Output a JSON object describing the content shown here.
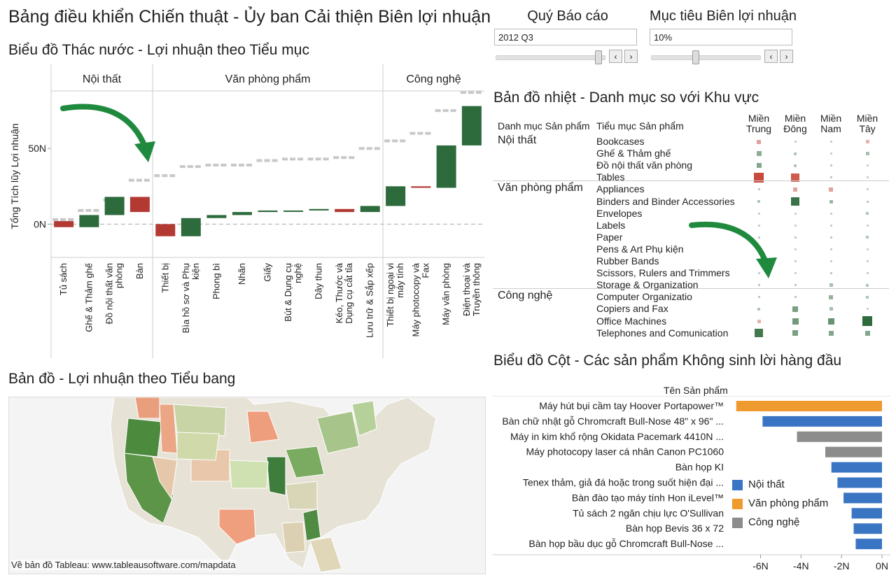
{
  "dashboard": {
    "title": "Bảng điều khiển Chiến thuật - Ủy ban Cải thiện Biên lợi nhuận"
  },
  "controls": {
    "quarter": {
      "label": "Quý Báo cáo",
      "value": "2012 Q3",
      "slider_fraction": 0.97
    },
    "margin_target": {
      "label": "Mục tiêu Biên lợi nhuận",
      "value": "10%",
      "slider_fraction": 0.42
    },
    "prev_symbol": "‹",
    "next_symbol": "›"
  },
  "waterfall": {
    "title": "Biểu đồ Thác nước - Lợi nhuận theo Tiểu mục",
    "y_axis_label": "Tổng Tích lũy Lợi nhuận",
    "y_ticks": [
      "50N",
      "0N"
    ],
    "groups": [
      "Nội thất",
      "Văn phòng phẩm",
      "Công nghệ"
    ]
  },
  "chart_data": [
    {
      "type": "bar",
      "subtype": "waterfall",
      "title": "Biểu đồ Thác nước - Lợi nhuận theo Tiểu mục",
      "ylabel": "Tổng Tích lũy Lợi nhuận",
      "ylim": [
        -22,
        88
      ],
      "groups": [
        {
          "name": "Nội thất",
          "categories": [
            "Tủ sách",
            "Ghế & Thảm ghế",
            "Đồ nội thất văn phòng",
            "Bàn"
          ]
        },
        {
          "name": "Văn phòng phẩm",
          "categories": [
            "Thiết bị",
            "Bìa hồ sơ và Phụ kiện",
            "Phong bì",
            "Nhãn",
            "Giấy",
            "Bút & Dụng cụ nghệ",
            "Dây thun",
            "Kéo, Thước và Dụng cụ cắt tỉa",
            "Lưu trữ & Sắp xếp"
          ]
        },
        {
          "name": "Công nghệ",
          "categories": [
            "Thiết bị ngoại vi máy tính",
            "Máy photocopy và Fax",
            "Máy văn phòng",
            "Điện thoại và Truyền thông"
          ]
        }
      ],
      "categories": [
        "Tủ sách",
        "Ghế & Thảm ghế",
        "Đồ nội thất văn phòng",
        "Bàn",
        "Thiết bị",
        "Bìa hồ sơ và Phụ kiện",
        "Phong bì",
        "Nhãn",
        "Giấy",
        "Bút & Dụng cụ nghệ",
        "Dây thun",
        "Kéo, Thước và Dụng cụ cắt tỉa",
        "Lưu trữ & Sắp xếp",
        "Thiết bị ngoại vi máy tính",
        "Máy photocopy và Fax",
        "Máy văn phòng",
        "Điện thoại và Truyền thông"
      ],
      "start": [
        2,
        -2,
        6,
        18,
        0,
        -8,
        4,
        6,
        8,
        9,
        9,
        10,
        8,
        12,
        25,
        24,
        52
      ],
      "end": [
        -2,
        6,
        18,
        8,
        -8,
        4,
        6,
        8,
        9,
        9,
        10,
        8,
        12,
        25,
        24,
        52,
        78
      ],
      "target_line": [
        3,
        9,
        16,
        29,
        32,
        38,
        39,
        39,
        42,
        43,
        43,
        44,
        50,
        55,
        60,
        75,
        87
      ],
      "colors": {
        "positive": "#2d6a3c",
        "negative": "#b33a33",
        "target": "#c8c8c8"
      }
    },
    {
      "type": "heatmap",
      "title": "Bản đồ nhiệt - Danh mục so với Khu vực",
      "columns": [
        "Miền Trung",
        "Miền Đông",
        "Miền Nam",
        "Miền Tây"
      ],
      "row_header": [
        "Danh mục Sản phẩm",
        "Tiểu mục Sản phẩm"
      ],
      "groups": [
        {
          "category": "Nội thất",
          "rows": [
            {
              "name": "Bookcases",
              "values": [
                -0.3,
                0.05,
                0.05,
                -0.2
              ]
            },
            {
              "name": "Ghế & Thảm ghế",
              "values": [
                0.35,
                0.15,
                0.05,
                0.2
              ]
            },
            {
              "name": "Đồ nội thất văn phòng",
              "values": [
                0.4,
                0.15,
                0.1,
                0.05
              ]
            },
            {
              "name": "Tables",
              "values": [
                -0.9,
                -0.75,
                0.1,
                0.05
              ]
            }
          ]
        },
        {
          "category": "Văn phòng phẩm",
          "rows": [
            {
              "name": "Appliances",
              "values": [
                0.1,
                -0.3,
                -0.3,
                0.05
              ]
            },
            {
              "name": "Binders and Binder Accessories",
              "values": [
                0.15,
                0.8,
                0.25,
                0.1
              ]
            },
            {
              "name": "Envelopes",
              "values": [
                0.05,
                0.05,
                0.05,
                0.15
              ]
            },
            {
              "name": "Labels",
              "values": [
                0.05,
                0.05,
                0.05,
                0.05
              ]
            },
            {
              "name": "Paper",
              "values": [
                0.1,
                0.1,
                0.1,
                0.15
              ]
            },
            {
              "name": "Pens & Art Phụ kiện",
              "values": [
                0.05,
                0.05,
                0.05,
                0.05
              ]
            },
            {
              "name": "Rubber Bands",
              "values": [
                0.05,
                0.05,
                0.05,
                0.05
              ]
            },
            {
              "name": "Scissors, Rulers and Trimmers",
              "values": [
                0.05,
                0.05,
                0.1,
                0.05
              ]
            },
            {
              "name": "Storage & Organization",
              "values": [
                0.1,
                0.1,
                0.2,
                0.15
              ]
            }
          ]
        },
        {
          "category": "Công nghệ",
          "rows": [
            {
              "name": "Computer Organizatio",
              "values": [
                0.1,
                0.1,
                0.3,
                0.15
              ]
            },
            {
              "name": "Copiers and Fax",
              "values": [
                0.15,
                0.45,
                0.2,
                0.05
              ]
            },
            {
              "name": "Office Machines",
              "values": [
                -0.2,
                0.5,
                0.55,
                0.95
              ]
            },
            {
              "name": "Telephones and Comunication",
              "values": [
                0.75,
                0.45,
                0.4,
                0.4
              ]
            }
          ]
        }
      ]
    },
    {
      "type": "bar",
      "orientation": "horizontal",
      "title": "Biểu đồ Cột - Các sản phẩm Không sinh lời hàng đầu",
      "ylabel": "Tên Sản phẩm",
      "xlim": [
        -7.4,
        0
      ],
      "x_ticks": [
        "-6N",
        "-4N",
        "-2N",
        "0N"
      ],
      "categories": [
        "Máy hút bụi cầm tay Hoover Portapower™",
        "Bàn chữ nhật gỗ Chromcraft Bull-Nose 48\" x 96\" ...",
        "Máy in kim khổ rộng Okidata Pacemark 4410N ...",
        "Máy photocopy laser cá nhân Canon PC1060",
        "Bàn họp KI",
        "Tenex thảm, giả đá hoặc trong suốt hiện đại ...",
        "Bàn đào tạo máy tính Hon iLevel™",
        "Tủ sách 2 ngăn chịu lực O'Sullivan",
        "Bàn họp Bevis 36 x 72",
        "Bàn họp bầu dục gỗ Chromcraft Bull-Nose ..."
      ],
      "values": [
        -7.2,
        -5.9,
        -4.2,
        -2.8,
        -2.5,
        -2.2,
        -1.9,
        -1.5,
        -1.4,
        -1.3
      ],
      "series_category": [
        "Văn phòng phẩm",
        "Nội thất",
        "Công nghệ",
        "Công nghệ",
        "Nội thất",
        "Nội thất",
        "Nội thất",
        "Nội thất",
        "Nội thất",
        "Nội thất"
      ],
      "legend": [
        {
          "name": "Nội thất",
          "color": "#3a75c4"
        },
        {
          "name": "Văn phòng phẩm",
          "color": "#ef9a2f"
        },
        {
          "name": "Công nghệ",
          "color": "#8c8c8c"
        }
      ]
    }
  ],
  "heatmap": {
    "title": "Bản đồ nhiệt - Danh mục so với Khu vực",
    "header_category": "Danh mục Sản phẩm",
    "header_sub": "Tiểu mục Sản phẩm",
    "columns": [
      [
        "Miền",
        "Trung"
      ],
      [
        "Miền",
        "Đông"
      ],
      [
        "Miền",
        "Nam"
      ],
      [
        "Miền",
        "Tây"
      ]
    ],
    "colors": {
      "positive": "#2d6a3c",
      "negative": "#c9493a"
    }
  },
  "barchart": {
    "title": "Biểu đồ Cột - Các sản phẩm Không sinh lời hàng đầu",
    "axis_header": "Tên Sản phẩm"
  },
  "map": {
    "title": "Bản đồ - Lợi nhuận theo Tiểu bang",
    "attribution": "Về bản đồ Tableau: www.tableausoftware.com/mapdata"
  }
}
